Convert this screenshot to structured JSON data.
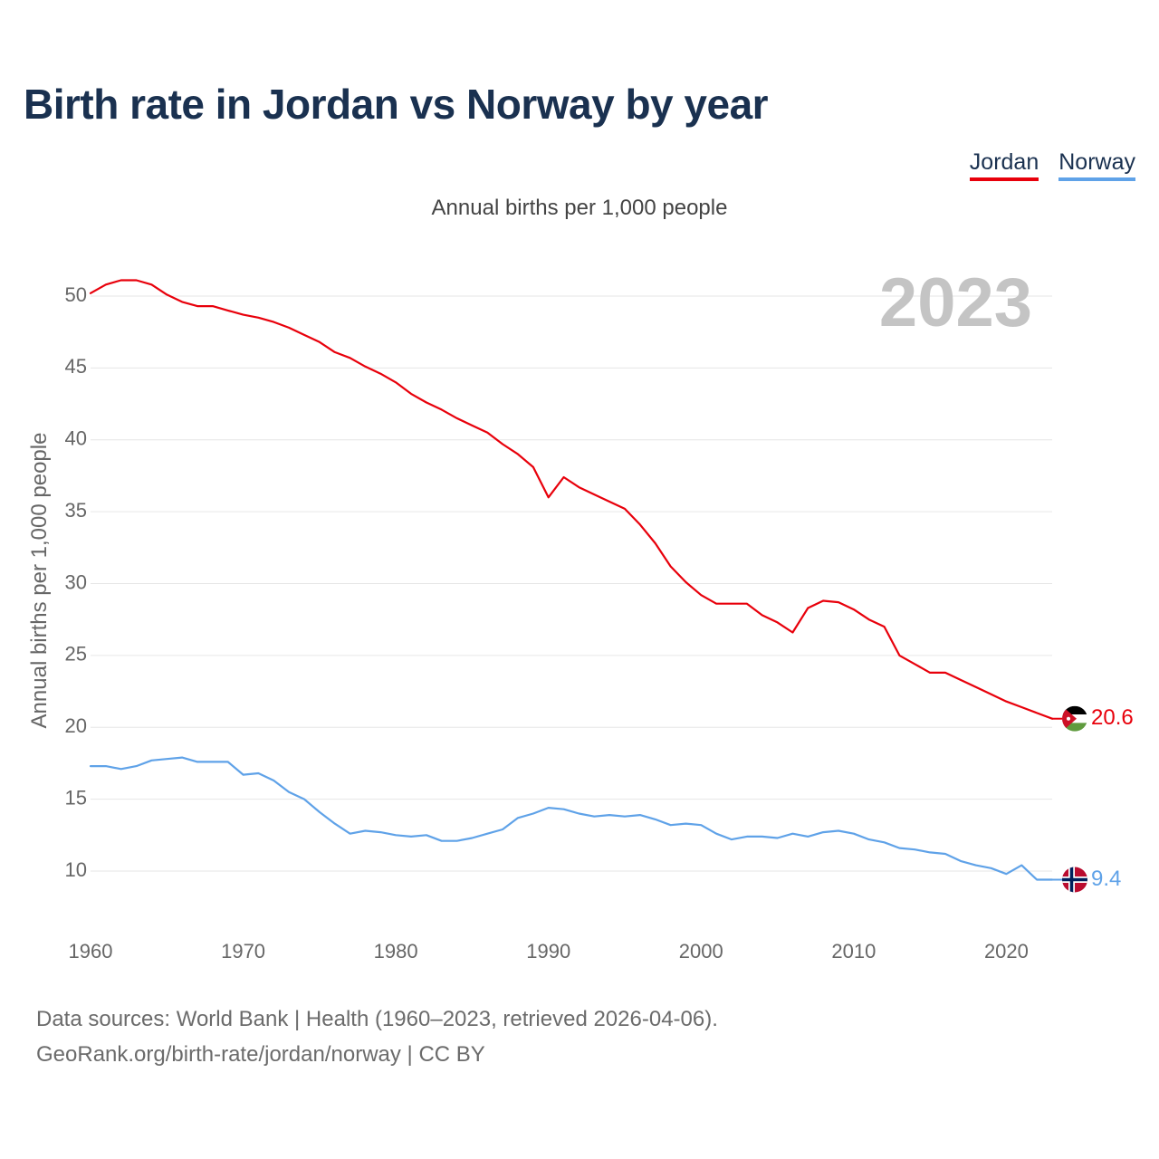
{
  "title": "Birth rate in Jordan vs Norway by year",
  "legend": {
    "jordan": "Jordan",
    "norway": "Norway"
  },
  "footer": {
    "line1": "Data sources: World Bank | Health (1960–2023, retrieved 2026-04-06).",
    "line2": "GeoRank.org/birth-rate/jordan/norway | CC BY"
  },
  "colors": {
    "jordan": "#e8000b",
    "norway": "#5fa2e8",
    "title": "#1a3150",
    "grid": "#e6e6e6",
    "year_watermark": "#c4c4c4"
  },
  "chart_data": {
    "type": "line",
    "title": "Birth rate in Jordan vs Norway by year",
    "subtitle": "Annual births per 1,000 people",
    "ylabel": "Annual births per 1,000 people",
    "xlabel": "",
    "xlim": [
      1960,
      2023
    ],
    "ylim": [
      7,
      52
    ],
    "xticks": [
      1960,
      1970,
      1980,
      1990,
      2000,
      2010,
      2020
    ],
    "yticks": [
      10,
      15,
      20,
      25,
      30,
      35,
      40,
      45,
      50
    ],
    "grid": true,
    "legend_position": "top-right",
    "year_label": "2023",
    "x": [
      1960,
      1961,
      1962,
      1963,
      1964,
      1965,
      1966,
      1967,
      1968,
      1969,
      1970,
      1971,
      1972,
      1973,
      1974,
      1975,
      1976,
      1977,
      1978,
      1979,
      1980,
      1981,
      1982,
      1983,
      1984,
      1985,
      1986,
      1987,
      1988,
      1989,
      1990,
      1991,
      1992,
      1993,
      1994,
      1995,
      1996,
      1997,
      1998,
      1999,
      2000,
      2001,
      2002,
      2003,
      2004,
      2005,
      2006,
      2007,
      2008,
      2009,
      2010,
      2011,
      2012,
      2013,
      2014,
      2015,
      2016,
      2017,
      2018,
      2019,
      2020,
      2021,
      2022,
      2023
    ],
    "series": [
      {
        "name": "Jordan",
        "color": "#e8000b",
        "end_label": "20.6",
        "flag": "jordan-flag",
        "values": [
          50.2,
          50.8,
          51.1,
          51.1,
          50.8,
          50.1,
          49.6,
          49.3,
          49.3,
          49.0,
          48.7,
          48.5,
          48.2,
          47.8,
          47.3,
          46.8,
          46.1,
          45.7,
          45.1,
          44.6,
          44.0,
          43.2,
          42.6,
          42.1,
          41.5,
          41.0,
          40.5,
          39.7,
          39.0,
          38.1,
          36.0,
          37.4,
          36.7,
          36.2,
          35.7,
          35.2,
          34.1,
          32.8,
          31.2,
          30.1,
          29.2,
          28.6,
          28.6,
          28.6,
          27.8,
          27.3,
          26.6,
          28.3,
          28.8,
          28.7,
          28.2,
          27.5,
          27.0,
          25.0,
          24.4,
          23.8,
          23.8,
          23.3,
          22.8,
          22.3,
          21.8,
          21.4,
          21.0,
          20.6
        ]
      },
      {
        "name": "Norway",
        "color": "#5fa2e8",
        "end_label": "9.4",
        "flag": "norway-flag",
        "values": [
          17.3,
          17.3,
          17.1,
          17.3,
          17.7,
          17.8,
          17.9,
          17.6,
          17.6,
          17.6,
          16.7,
          16.8,
          16.3,
          15.5,
          15.0,
          14.1,
          13.3,
          12.6,
          12.8,
          12.7,
          12.5,
          12.4,
          12.5,
          12.1,
          12.1,
          12.3,
          12.6,
          12.9,
          13.7,
          14.0,
          14.4,
          14.3,
          14.0,
          13.8,
          13.9,
          13.8,
          13.9,
          13.6,
          13.2,
          13.3,
          13.2,
          12.6,
          12.2,
          12.4,
          12.4,
          12.3,
          12.6,
          12.4,
          12.7,
          12.8,
          12.6,
          12.2,
          12.0,
          11.6,
          11.5,
          11.3,
          11.2,
          10.7,
          10.4,
          10.2,
          9.8,
          10.4,
          9.4,
          9.4
        ]
      }
    ]
  }
}
